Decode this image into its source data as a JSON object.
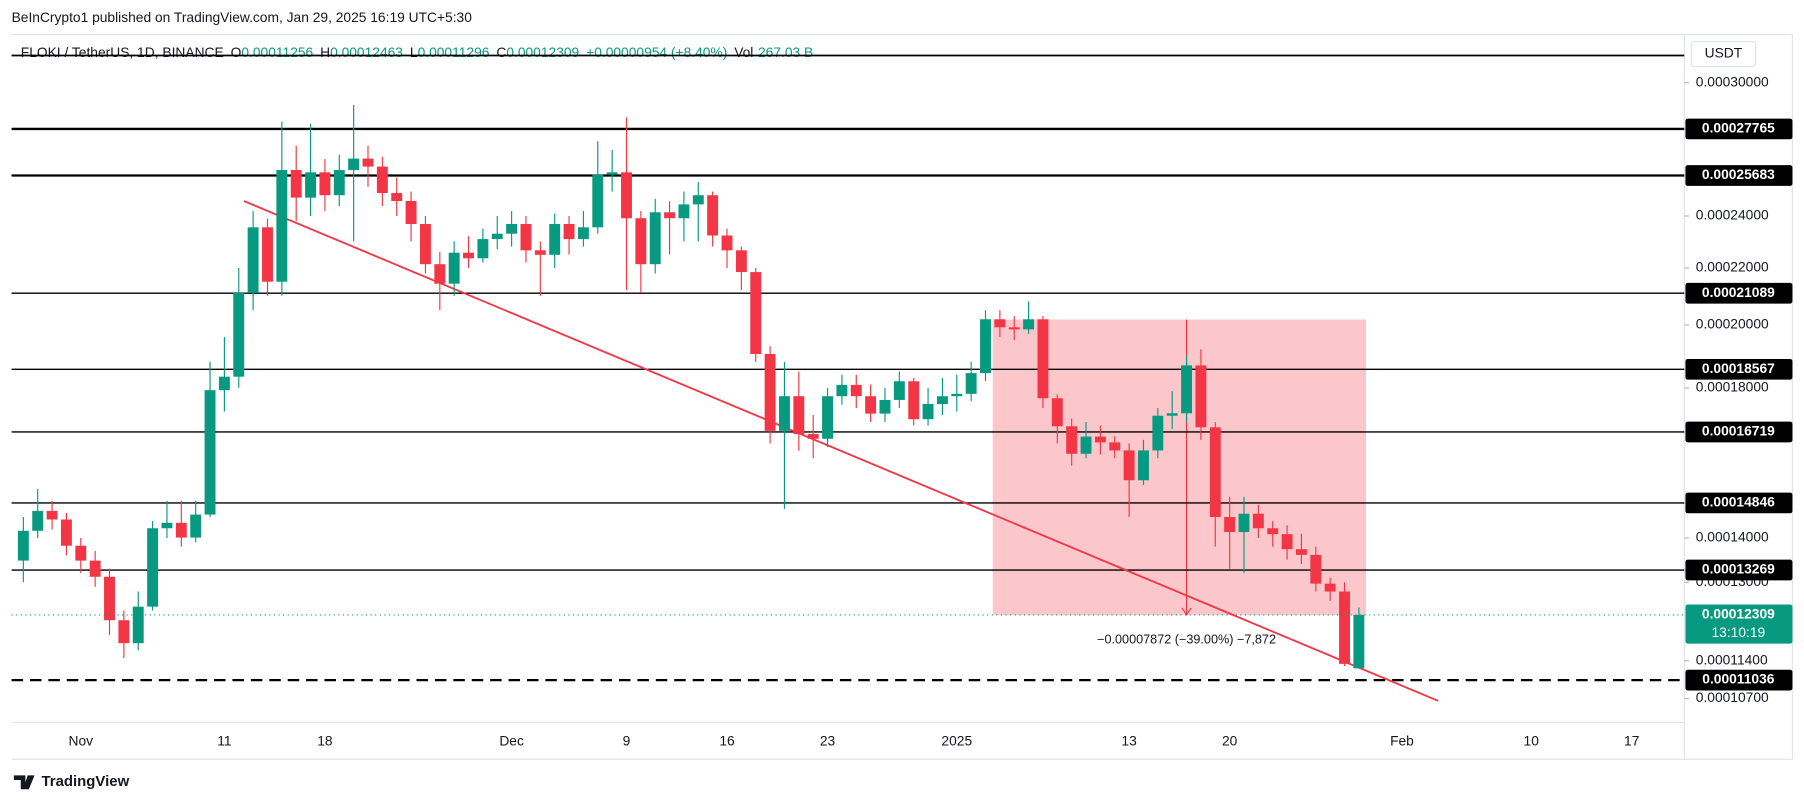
{
  "header": "BeInCrypto1 published on TradingView.com, Jan 29, 2025 16:19 UTC+5:30",
  "legend": {
    "o": "O",
    "h": "H",
    "l": "L",
    "c": "C",
    "change": "+0.00000954 (+8.40%)",
    "vol_label": "Vol",
    "vol": "267.03 B"
  },
  "currency": "USDT",
  "countdown": "13:10:19",
  "brand": "TradingView",
  "chart_data": {
    "type": "candlestick",
    "log_scale": true,
    "grid": false,
    "ylim": [
      0.0001034,
      0.0003252
    ],
    "yticks": [
      {
        "value": 0.0003,
        "label": "0.00030000"
      },
      {
        "value": 0.00024,
        "label": "0.00024000"
      },
      {
        "value": 0.00022,
        "label": "0.00022000"
      },
      {
        "value": 0.0002,
        "label": "0.00020000"
      },
      {
        "value": 0.00018,
        "label": "0.00018000"
      },
      {
        "value": 0.00014,
        "label": "0.00014000"
      },
      {
        "value": 0.00013,
        "label": "0.00013000"
      },
      {
        "value": 0.000114,
        "label": "0.00011400"
      },
      {
        "value": 0.000107,
        "label": "0.00010700"
      }
    ],
    "categories": [
      null,
      null,
      null,
      null,
      "Nov",
      null,
      null,
      null,
      null,
      null,
      null,
      null,
      null,
      null,
      "11",
      null,
      null,
      null,
      null,
      null,
      null,
      "18",
      null,
      null,
      null,
      null,
      null,
      null,
      null,
      null,
      null,
      null,
      null,
      null,
      "Dec",
      null,
      null,
      null,
      null,
      null,
      null,
      null,
      "9",
      null,
      null,
      null,
      null,
      null,
      null,
      "16",
      null,
      null,
      null,
      null,
      null,
      null,
      "23",
      null,
      null,
      null,
      null,
      null,
      null,
      null,
      null,
      "2025",
      null,
      null,
      null,
      null,
      null,
      null,
      null,
      null,
      null,
      null,
      null,
      "13",
      null,
      null,
      null,
      null,
      null,
      null,
      "20",
      null,
      null,
      null,
      null,
      null,
      null,
      null,
      null,
      null,
      null,
      null,
      "Feb",
      null,
      null,
      null,
      null,
      null,
      null,
      null,
      null,
      "10",
      null,
      null,
      null,
      null,
      null,
      null,
      "17",
      null,
      null,
      null
    ],
    "series": [
      {
        "name": "FLOKI / TetherUS, 1D, BINANCE",
        "up_color": "#089981",
        "down_color": "#f23645",
        "open": [
          0.0001348,
          0.0001417,
          0.0001465,
          0.0001444,
          0.0001382,
          0.0001348,
          0.0001312,
          0.000122,
          0.0001174,
          0.0001248,
          0.0001423,
          0.0001436,
          0.0001401,
          0.0001456,
          0.0001793,
          0.0001834,
          0.000211,
          0.0002355,
          0.000215,
          0.0002592,
          0.0002475,
          0.0002582,
          0.0002485,
          0.0002592,
          0.0002642,
          0.0002607,
          0.0002494,
          0.0002461,
          0.0002368,
          0.0002214,
          0.0002143,
          0.0002257,
          0.0002236,
          0.0002309,
          0.000233,
          0.0002368,
          0.0002266,
          0.0002249,
          0.0002368,
          0.0002309,
          0.0002355,
          0.0002572,
          0.0002582,
          0.0002391,
          0.0002214,
          0.0002415,
          0.0002391,
          0.0002447,
          0.0002485,
          0.0002323,
          0.0002266,
          0.0002185,
          0.0001905,
          0.0001675,
          0.0001775,
          0.0001666,
          0.0001653,
          0.0001775,
          0.0001809,
          0.0001775,
          0.0001724,
          0.0001764,
          0.000182,
          0.0001708,
          0.0001752,
          0.0001775,
          0.0001782,
          0.0001845,
          0.0002019,
          0.0001992,
          0.0001985,
          0.0002019,
          0.0001769,
          0.0001688,
          0.0001612,
          0.0001659,
          0.0001643,
          0.0001621,
          0.0001542,
          0.0001621,
          0.0001718,
          0.0001725,
          0.0001869,
          0.0001685,
          0.000145,
          0.0001414,
          0.0001458,
          0.0001423,
          0.0001409,
          0.0001374,
          0.0001361,
          0.0001297,
          0.000128,
          0.00011256,
          null,
          null,
          null,
          null,
          null,
          null,
          null,
          null,
          null,
          null,
          null,
          null,
          null,
          null,
          null,
          null,
          null,
          null,
          null,
          null,
          null,
          null
        ],
        "high": [
          0.000145,
          0.000152,
          0.000149,
          0.000146,
          0.00014,
          0.000137,
          0.000133,
          0.000124,
          0.000128,
          0.000144,
          0.000149,
          0.000149,
          0.000149,
          0.000188,
          0.000196,
          0.00022,
          0.000242,
          0.000239,
          0.000281,
          0.00027,
          0.00028,
          0.000264,
          0.000266,
          0.000289,
          0.00027,
          0.000265,
          0.000256,
          0.00025,
          0.00024,
          0.000226,
          0.00023,
          0.000232,
          0.000235,
          0.00024,
          0.000242,
          0.00024,
          0.00023,
          0.000241,
          0.00024,
          0.000242,
          0.000272,
          0.000268,
          0.000283,
          0.000242,
          0.000247,
          0.000246,
          0.00025,
          0.000254,
          0.00025,
          0.000235,
          0.000228,
          0.00022,
          0.000193,
          0.000188,
          0.000185,
          0.000172,
          0.00018,
          0.000184,
          0.000184,
          0.000181,
          0.00018,
          0.000185,
          0.000183,
          0.00018,
          0.000183,
          0.000184,
          0.000188,
          0.000205,
          0.000205,
          0.000203,
          0.000208,
          0.000203,
          0.000178,
          0.000171,
          0.00017,
          0.000169,
          0.000166,
          0.000164,
          0.000165,
          0.000174,
          0.000179,
          0.00019,
          0.000192,
          0.00017,
          0.00015,
          0.00015,
          0.000148,
          0.000144,
          0.000143,
          0.000141,
          0.000138,
          0.000131,
          0.00013,
          0.00012463,
          null,
          null,
          null,
          null,
          null,
          null,
          null,
          null,
          null,
          null,
          null,
          null,
          null,
          null,
          null,
          null,
          null,
          null,
          null,
          null,
          null,
          null
        ],
        "low": [
          0.00013,
          0.00014,
          0.000142,
          0.000136,
          0.000132,
          0.000129,
          0.000119,
          0.0001145,
          0.000116,
          0.000124,
          0.00014,
          0.000138,
          0.000139,
          0.000145,
          0.000173,
          0.00018,
          0.000205,
          0.00021,
          0.00021,
          0.000238,
          0.00024,
          0.000242,
          0.000244,
          0.00023,
          0.000252,
          0.000244,
          0.00024,
          0.00023,
          0.000218,
          0.000205,
          0.00021,
          0.00022,
          0.000222,
          0.000227,
          0.000228,
          0.000222,
          0.00021,
          0.00022,
          0.000225,
          0.000228,
          0.000233,
          0.00025,
          0.000212,
          0.000211,
          0.000218,
          0.000225,
          0.00023,
          0.00023,
          0.000228,
          0.00022,
          0.000212,
          0.000188,
          0.000164,
          0.000147,
          0.000162,
          0.00016,
          0.000163,
          0.000175,
          0.000174,
          0.00017,
          0.00017,
          0.000174,
          0.000169,
          0.000169,
          0.000172,
          0.000173,
          0.000176,
          0.000182,
          0.000196,
          0.000195,
          0.000197,
          0.000174,
          0.000164,
          0.000158,
          0.00016,
          0.000161,
          0.00016,
          0.000145,
          0.000153,
          0.00016,
          0.000168,
          0.00017,
          0.000165,
          0.000138,
          0.000133,
          0.000132,
          0.00014,
          0.000138,
          0.000135,
          0.000134,
          0.000128,
          0.000126,
          0.000113,
          0.00011296,
          null,
          null,
          null,
          null,
          null,
          null,
          null,
          null,
          null,
          null,
          null,
          null,
          null,
          null,
          null,
          null,
          null,
          null,
          null,
          null,
          null,
          null
        ],
        "close": [
          0.0001417,
          0.0001465,
          0.0001444,
          0.0001382,
          0.0001348,
          0.0001312,
          0.000122,
          0.0001174,
          0.0001248,
          0.0001423,
          0.0001436,
          0.0001401,
          0.0001456,
          0.0001793,
          0.0001834,
          0.000211,
          0.0002355,
          0.000215,
          0.0002592,
          0.0002475,
          0.0002582,
          0.0002485,
          0.0002592,
          0.0002642,
          0.0002607,
          0.0002494,
          0.0002461,
          0.0002368,
          0.0002214,
          0.0002143,
          0.0002257,
          0.0002236,
          0.0002309,
          0.000233,
          0.0002368,
          0.0002266,
          0.0002249,
          0.0002368,
          0.0002309,
          0.0002355,
          0.0002572,
          0.0002582,
          0.0002391,
          0.0002214,
          0.0002415,
          0.0002391,
          0.0002447,
          0.0002485,
          0.0002323,
          0.0002266,
          0.0002185,
          0.0001905,
          0.0001675,
          0.0001775,
          0.0001666,
          0.0001653,
          0.0001775,
          0.0001809,
          0.0001775,
          0.0001724,
          0.0001764,
          0.000182,
          0.0001708,
          0.0001752,
          0.0001775,
          0.0001782,
          0.0001845,
          0.0002019,
          0.0001992,
          0.0001985,
          0.0002019,
          0.0001769,
          0.0001688,
          0.0001612,
          0.0001659,
          0.0001643,
          0.0001621,
          0.0001542,
          0.0001621,
          0.0001718,
          0.0001725,
          0.0001869,
          0.0001685,
          0.000145,
          0.0001414,
          0.0001458,
          0.0001423,
          0.0001409,
          0.0001374,
          0.0001361,
          0.0001297,
          0.000128,
          0.0001134,
          0.00012309,
          null,
          null,
          null,
          null,
          null,
          null,
          null,
          null,
          null,
          null,
          null,
          null,
          null,
          null,
          null,
          null,
          null,
          null,
          null,
          null,
          null,
          null
        ]
      }
    ],
    "levels": [
      0.00027765,
      0.00025683,
      0.00021089,
      0.00018567,
      0.00016719,
      0.00014846,
      0.00013269
    ],
    "support": 0.00011036,
    "upper_line": 0.000314,
    "trendline": [
      0.0002461,
      0.0001066
    ],
    "measure": {
      "from": 0.00020181,
      "to": 0.00012309,
      "label": "−0.00007872 (−39.00%) −7,872",
      "color": "#f23645"
    }
  }
}
